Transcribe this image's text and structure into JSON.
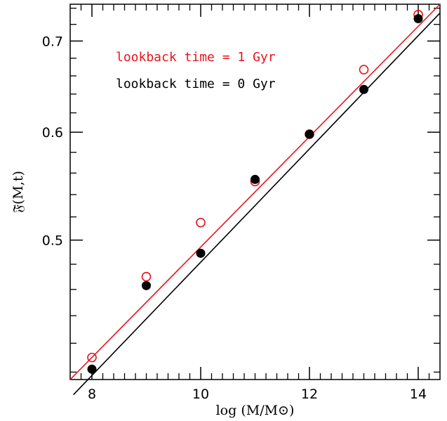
{
  "chart_data": {
    "type": "scatter",
    "xlabel": "log (M/M⊙)",
    "ylabel": "𝔉̄(M,t)",
    "xlim": [
      7.6,
      14.4
    ],
    "ylim": [
      0.395,
      0.745
    ],
    "log_y": true,
    "x_ticks": [
      8,
      10,
      12,
      14
    ],
    "x_minor_ticks": [
      7.8,
      8.2,
      8.4,
      8.6,
      8.8,
      9,
      9.2,
      9.4,
      9.6,
      9.8,
      10.2,
      10.4,
      10.6,
      10.8,
      11,
      11.2,
      11.4,
      11.6,
      11.8,
      12.2,
      12.4,
      12.6,
      12.8,
      13,
      13.2,
      13.4,
      13.6,
      13.8,
      14.2
    ],
    "y_ticks": [
      0.5,
      0.6,
      0.7
    ],
    "y_tick_labels": [
      "0.5",
      "0.6",
      "0.7"
    ],
    "y_minor_ticks": [
      0.4,
      0.42,
      0.44,
      0.46,
      0.48,
      0.52,
      0.54,
      0.56,
      0.58,
      0.62,
      0.64,
      0.66,
      0.68,
      0.72,
      0.74
    ],
    "grid": false,
    "legend_position": "top-left",
    "series": [
      {
        "name": "lookback time = 1 Gyr",
        "color": "#e8141c",
        "marker": "open-circle",
        "x": [
          8,
          9,
          10,
          11,
          12,
          13,
          14
        ],
        "y": [
          0.41,
          0.47,
          0.515,
          0.552,
          0.598,
          0.667,
          0.732
        ],
        "fit_line": {
          "x": [
            7.6,
            14.4
          ],
          "y": [
            0.395,
            0.745
          ]
        }
      },
      {
        "name": "lookback time = 0 Gyr",
        "color": "#000000",
        "marker": "filled-circle",
        "x": [
          8,
          9,
          10,
          11,
          12,
          13,
          14
        ],
        "y": [
          0.402,
          0.463,
          0.489,
          0.554,
          0.598,
          0.645,
          0.727
        ],
        "fit_line": {
          "x": [
            7.66,
            14.4
          ],
          "y": [
            0.385,
            0.734
          ]
        }
      }
    ]
  }
}
